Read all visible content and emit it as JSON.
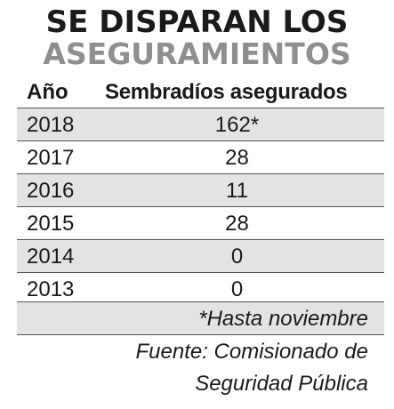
{
  "title": {
    "line1": "SE DISPARAN LOS",
    "line2": "ASEGURAMIENTOS"
  },
  "table": {
    "headers": [
      "Año",
      "Sembradíos asegurados"
    ],
    "rows": [
      {
        "year": "2018",
        "value": "162*"
      },
      {
        "year": "2017",
        "value": "28"
      },
      {
        "year": "2016",
        "value": "11"
      },
      {
        "year": "2015",
        "value": "28"
      },
      {
        "year": "2014",
        "value": "0"
      },
      {
        "year": "2013",
        "value": "0"
      }
    ]
  },
  "note": "*Hasta noviembre",
  "source": {
    "line1": "Fuente: Comisionado de",
    "line2": "Seguridad Pública"
  },
  "colors": {
    "title_dark": "#1a1a1a",
    "title_gray": "#8f8f8f",
    "row_shade": "#e3e3e3"
  }
}
